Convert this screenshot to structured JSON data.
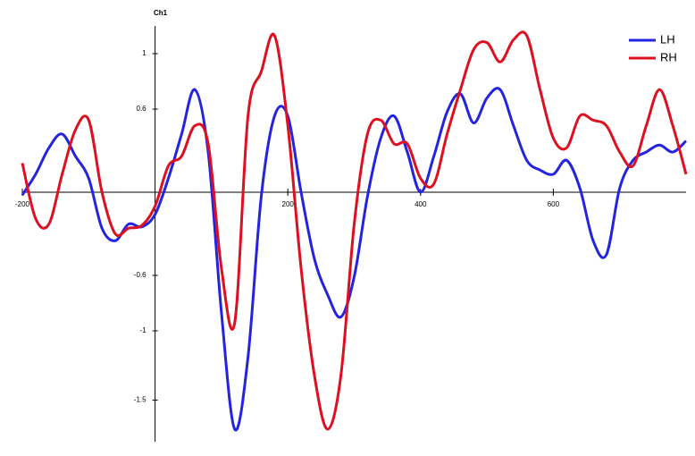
{
  "chart_data": {
    "type": "line",
    "y_label": "Ch1",
    "x": [
      -200,
      -180,
      -160,
      -140,
      -120,
      -100,
      -80,
      -60,
      -40,
      -20,
      0,
      20,
      40,
      60,
      80,
      100,
      120,
      140,
      160,
      180,
      200,
      220,
      240,
      260,
      280,
      300,
      320,
      340,
      360,
      380,
      400,
      420,
      440,
      460,
      480,
      500,
      520,
      540,
      560,
      580,
      600,
      620,
      640,
      660,
      680,
      700,
      720,
      740,
      760,
      780,
      800
    ],
    "series": [
      {
        "name": "LH",
        "color": "#2424e0",
        "values": [
          -0.02,
          0.13,
          0.32,
          0.42,
          0.26,
          0.1,
          -0.26,
          -0.35,
          -0.23,
          -0.25,
          -0.16,
          0.1,
          0.42,
          0.74,
          0.29,
          -0.87,
          -1.71,
          -1.19,
          -0.03,
          0.55,
          0.55,
          0,
          -0.48,
          -0.74,
          -0.9,
          -0.61,
          -0.03,
          0.39,
          0.55,
          0.29,
          0,
          0.26,
          0.58,
          0.71,
          0.5,
          0.68,
          0.74,
          0.48,
          0.23,
          0.16,
          0.13,
          0.23,
          0.03,
          -0.35,
          -0.45,
          0.03,
          0.23,
          0.29,
          0.34,
          0.29,
          0.37
        ]
      },
      {
        "name": "RH",
        "color": "#dd1020",
        "values": [
          0.21,
          -0.19,
          -0.23,
          0.13,
          0.45,
          0.52,
          0,
          -0.3,
          -0.26,
          -0.24,
          -0.1,
          0.19,
          0.26,
          0.48,
          0.35,
          -0.55,
          -0.94,
          0.55,
          0.87,
          1.13,
          0.48,
          -0.55,
          -1.32,
          -1.71,
          -1.32,
          -0.23,
          0.42,
          0.52,
          0.35,
          0.35,
          0.1,
          0.06,
          0.42,
          0.74,
          1.03,
          1.08,
          0.94,
          1.1,
          1.13,
          0.74,
          0.39,
          0.32,
          0.55,
          0.52,
          0.48,
          0.29,
          0.19,
          0.48,
          0.74,
          0.48,
          0.13
        ]
      }
    ],
    "xlim": [
      -200,
      800
    ],
    "ylim": [
      -1.8,
      1.2
    ],
    "xticks": [
      -200,
      200,
      400,
      600
    ],
    "yticks": [
      1,
      0.6,
      -0.6,
      -1,
      -1.5
    ],
    "legend": "top-right"
  }
}
